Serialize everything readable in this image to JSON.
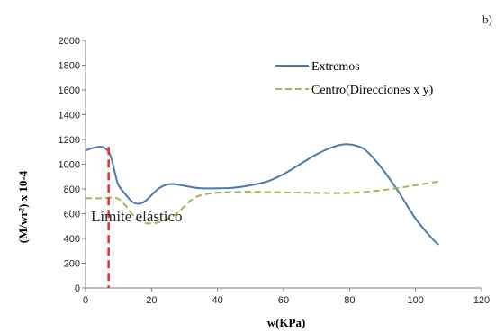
{
  "chart_data": {
    "type": "line",
    "panel_label": "b)",
    "xlabel": "w(KPa)",
    "ylabel": "(M/wr²)  x 10-4",
    "xlim": [
      0,
      120
    ],
    "ylim": [
      0,
      2000
    ],
    "x_ticks": [
      0,
      20,
      40,
      60,
      80,
      100,
      120
    ],
    "y_ticks": [
      0,
      200,
      400,
      600,
      800,
      1000,
      1200,
      1400,
      1600,
      1800,
      2000
    ],
    "grid": false,
    "legend_position": "top-right",
    "series": [
      {
        "name": "Extremos",
        "color": "#4a78b0",
        "style": "solid",
        "x": [
          0,
          2,
          5,
          7,
          8,
          9,
          10,
          12,
          14,
          16,
          18,
          20,
          22,
          24,
          26,
          28,
          30,
          32,
          35,
          40,
          45,
          50,
          55,
          60,
          65,
          70,
          75,
          78,
          80,
          82,
          85,
          90,
          95,
          100,
          105,
          107
        ],
        "y": [
          1110,
          1130,
          1140,
          1100,
          1030,
          920,
          830,
          760,
          700,
          680,
          700,
          750,
          800,
          830,
          840,
          835,
          825,
          815,
          805,
          805,
          810,
          830,
          860,
          920,
          1000,
          1080,
          1140,
          1160,
          1160,
          1150,
          1110,
          960,
          770,
          560,
          400,
          350
        ]
      },
      {
        "name": "Centro(Direcciones x y)",
        "color": "#9bbb59",
        "style": "dashed",
        "x": [
          0,
          5,
          8,
          10,
          12,
          14,
          16,
          18,
          20,
          22,
          25,
          28,
          30,
          32,
          35,
          40,
          45,
          50,
          55,
          60,
          70,
          80,
          90,
          100,
          107
        ],
        "y": [
          725,
          725,
          730,
          720,
          670,
          600,
          550,
          525,
          520,
          530,
          560,
          610,
          660,
          710,
          750,
          770,
          775,
          778,
          775,
          772,
          768,
          768,
          790,
          830,
          860
        ]
      }
    ],
    "annotations": [
      {
        "text": "Límite elástico",
        "x": 7,
        "line_color": "#e8302a",
        "line_style": "dashed",
        "line_top_y": 1140
      }
    ]
  }
}
